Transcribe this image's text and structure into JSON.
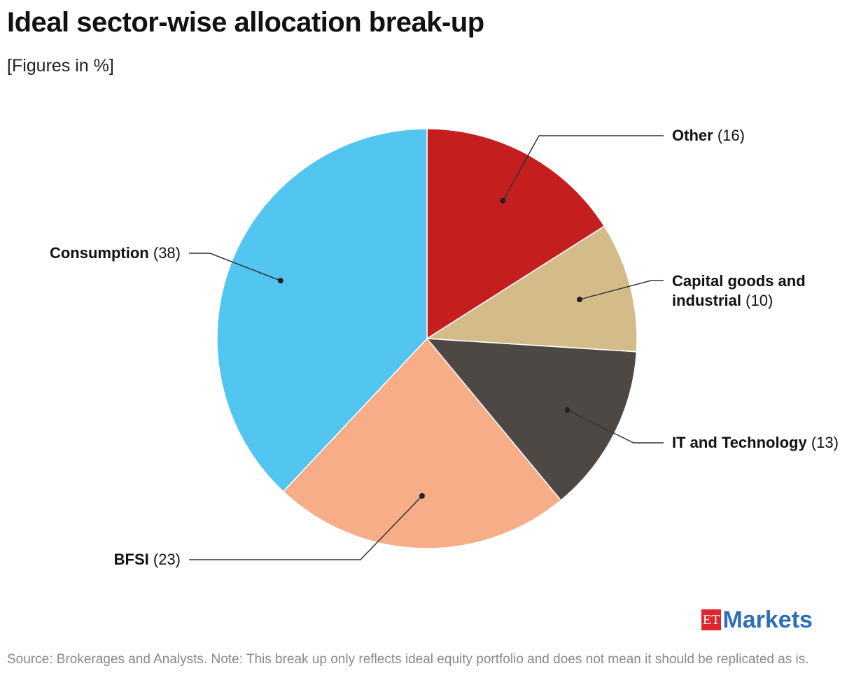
{
  "chart_data": {
    "type": "pie",
    "title": "Ideal sector-wise allocation break-up",
    "subtitle": "[Figures in %]",
    "categories": [
      "Other",
      "Capital goods and industrial",
      "IT and Technology",
      "BFSI",
      "Consumption"
    ],
    "values": [
      16,
      10,
      13,
      23,
      38
    ],
    "value_labels": [
      "(16)",
      "(10)",
      "(13)",
      "(23)",
      "(38)"
    ],
    "colors": [
      "#c41e1e",
      "#d4bc8a",
      "#4d4843",
      "#f6ad88",
      "#52c5f0"
    ],
    "source": "Source: Brokerages and Analysts. Note: This break up only reflects ideal equity portfolio and does not mean it should be replicated as is.",
    "logo_mark": "ET",
    "logo_name": "Markets"
  }
}
